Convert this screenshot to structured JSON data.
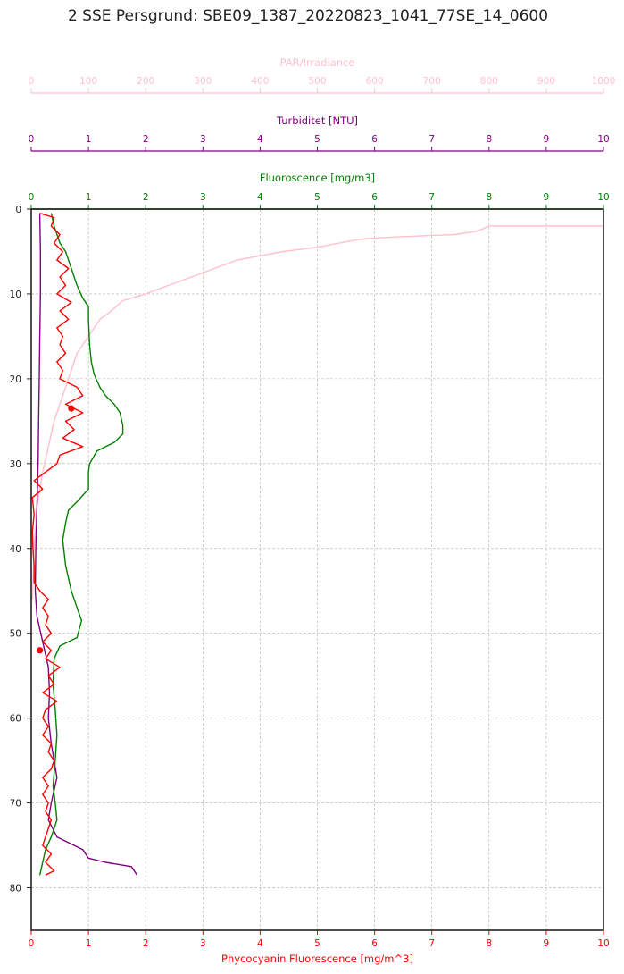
{
  "page": {
    "title": "2 SSE Persgrund: SBE09_1387_20220823_1041_77SE_14_0600"
  },
  "colors": {
    "par": "#ffc0cb",
    "turbidity": "#800080",
    "fluorescence": "#008000",
    "phycocyanin": "#ff0000",
    "grid": "#b0b0b0",
    "frame": "#222222"
  },
  "chart_data": {
    "type": "line",
    "title": "2 SSE Persgrund: SBE09_1387_20220823_1041_77SE_14_0600",
    "grid": true,
    "y_axis": {
      "label": "",
      "range": [
        85,
        0
      ],
      "inverted": true,
      "ticks": [
        0,
        10,
        20,
        30,
        40,
        50,
        60,
        70,
        80
      ],
      "tick_labels": [
        "0",
        "10",
        "20",
        "30",
        "40",
        "50",
        "60",
        "70",
        "80"
      ]
    },
    "x_axes": [
      {
        "key": "par",
        "label": "PAR/Irradiance",
        "range": [
          0,
          1000
        ],
        "ticks": [
          0,
          100,
          200,
          300,
          400,
          500,
          600,
          700,
          800,
          900,
          1000
        ],
        "tick_labels": [
          "0",
          "100",
          "200",
          "300",
          "400",
          "500",
          "600",
          "700",
          "800",
          "900",
          "1000"
        ],
        "color": "#ffc0cb"
      },
      {
        "key": "turbidity",
        "label": "Turbiditet [NTU]",
        "range": [
          0,
          10
        ],
        "ticks": [
          0,
          1,
          2,
          3,
          4,
          5,
          6,
          7,
          8,
          9,
          10
        ],
        "tick_labels": [
          "0",
          "1",
          "2",
          "3",
          "4",
          "5",
          "6",
          "7",
          "8",
          "9",
          "10"
        ],
        "color": "#800080"
      },
      {
        "key": "fluorescence",
        "label": "Fluoroscence [mg/m3]",
        "range": [
          0,
          10
        ],
        "ticks": [
          0,
          1,
          2,
          3,
          4,
          5,
          6,
          7,
          8,
          9,
          10
        ],
        "tick_labels": [
          "0",
          "1",
          "2",
          "3",
          "4",
          "5",
          "6",
          "7",
          "8",
          "9",
          "10"
        ],
        "color": "#008000"
      },
      {
        "key": "phycocyanin",
        "label": "Phycocyanin Fluorescence [mg/m^3]",
        "range": [
          0,
          10
        ],
        "ticks": [
          0,
          1,
          2,
          3,
          4,
          5,
          6,
          7,
          8,
          9,
          10
        ],
        "tick_labels": [
          "0",
          "1",
          "2",
          "3",
          "4",
          "5",
          "6",
          "7",
          "8",
          "9",
          "10"
        ],
        "color": "#ff0000"
      }
    ],
    "series": [
      {
        "key": "par",
        "axis": "par",
        "color": "#ffc0cb",
        "points": [
          [
            1000,
            2
          ],
          [
            800,
            2
          ],
          [
            780,
            2.6
          ],
          [
            740,
            3
          ],
          [
            700,
            3.1
          ],
          [
            600,
            3.4
          ],
          [
            570,
            3.6
          ],
          [
            500,
            4.5
          ],
          [
            440,
            5
          ],
          [
            400,
            5.5
          ],
          [
            360,
            6
          ],
          [
            320,
            7
          ],
          [
            280,
            8
          ],
          [
            240,
            9
          ],
          [
            200,
            10
          ],
          [
            160,
            10.8
          ],
          [
            140,
            12
          ],
          [
            120,
            13
          ],
          [
            100,
            15
          ],
          [
            90,
            16
          ],
          [
            80,
            17
          ],
          [
            70,
            19
          ],
          [
            60,
            21
          ],
          [
            50,
            23
          ],
          [
            40,
            25
          ],
          [
            30,
            28
          ],
          [
            20,
            31
          ],
          [
            10,
            35
          ],
          [
            5,
            40
          ],
          [
            2,
            46
          ]
        ]
      },
      {
        "key": "turbidity",
        "axis": "turbidity",
        "color": "#800080",
        "points": [
          [
            0.15,
            0.5
          ],
          [
            0.16,
            5
          ],
          [
            0.16,
            10
          ],
          [
            0.15,
            15
          ],
          [
            0.14,
            20
          ],
          [
            0.13,
            25
          ],
          [
            0.12,
            30
          ],
          [
            0.1,
            35
          ],
          [
            0.08,
            40
          ],
          [
            0.07,
            45
          ],
          [
            0.1,
            48
          ],
          [
            0.2,
            51
          ],
          [
            0.3,
            54
          ],
          [
            0.32,
            57
          ],
          [
            0.3,
            60
          ],
          [
            0.35,
            63
          ],
          [
            0.4,
            65
          ],
          [
            0.45,
            67
          ],
          [
            0.35,
            70
          ],
          [
            0.3,
            72
          ],
          [
            0.45,
            74
          ],
          [
            0.9,
            75.5
          ],
          [
            1.0,
            76.5
          ],
          [
            1.3,
            77
          ],
          [
            1.75,
            77.5
          ],
          [
            1.85,
            78.5
          ]
        ]
      },
      {
        "key": "fluorescence",
        "axis": "fluorescence",
        "color": "#008000",
        "points": [
          [
            0.35,
            0.5
          ],
          [
            0.4,
            2
          ],
          [
            0.5,
            4
          ],
          [
            0.6,
            5
          ],
          [
            0.7,
            7
          ],
          [
            0.8,
            9
          ],
          [
            0.9,
            10.5
          ],
          [
            1.0,
            11.5
          ],
          [
            1.0,
            13
          ],
          [
            1.02,
            16
          ],
          [
            1.05,
            18
          ],
          [
            1.1,
            19.5
          ],
          [
            1.2,
            21
          ],
          [
            1.3,
            22
          ],
          [
            1.45,
            23
          ],
          [
            1.55,
            24
          ],
          [
            1.6,
            25.5
          ],
          [
            1.6,
            26.5
          ],
          [
            1.45,
            27.5
          ],
          [
            1.15,
            28.5
          ],
          [
            1.02,
            30
          ],
          [
            1.0,
            31
          ],
          [
            1.0,
            33
          ],
          [
            0.8,
            34.5
          ],
          [
            0.65,
            35.5
          ],
          [
            0.6,
            37
          ],
          [
            0.55,
            39
          ],
          [
            0.6,
            42
          ],
          [
            0.7,
            45
          ],
          [
            0.8,
            47
          ],
          [
            0.88,
            48.5
          ],
          [
            0.8,
            50.5
          ],
          [
            0.5,
            51.5
          ],
          [
            0.4,
            53
          ],
          [
            0.38,
            56
          ],
          [
            0.42,
            59
          ],
          [
            0.45,
            62
          ],
          [
            0.42,
            65
          ],
          [
            0.38,
            68
          ],
          [
            0.42,
            70
          ],
          [
            0.45,
            72
          ],
          [
            0.35,
            74
          ],
          [
            0.25,
            75.5
          ],
          [
            0.15,
            78.5
          ]
        ]
      },
      {
        "key": "phycocyanin",
        "axis": "phycocyanin",
        "color": "#ff0000",
        "points": [
          [
            0.15,
            0.5
          ],
          [
            0.4,
            1
          ],
          [
            0.35,
            2
          ],
          [
            0.5,
            3
          ],
          [
            0.4,
            4
          ],
          [
            0.55,
            5
          ],
          [
            0.45,
            6
          ],
          [
            0.65,
            7
          ],
          [
            0.5,
            8
          ],
          [
            0.6,
            9
          ],
          [
            0.45,
            10
          ],
          [
            0.7,
            11
          ],
          [
            0.5,
            12
          ],
          [
            0.65,
            13
          ],
          [
            0.45,
            14
          ],
          [
            0.55,
            15
          ],
          [
            0.5,
            16
          ],
          [
            0.6,
            17
          ],
          [
            0.45,
            18
          ],
          [
            0.55,
            19
          ],
          [
            0.5,
            20
          ],
          [
            0.8,
            21
          ],
          [
            0.9,
            22
          ],
          [
            0.6,
            23
          ],
          [
            0.9,
            24
          ],
          [
            0.6,
            25
          ],
          [
            0.75,
            26
          ],
          [
            0.55,
            27
          ],
          [
            0.9,
            28
          ],
          [
            0.5,
            29
          ],
          [
            0.45,
            30
          ],
          [
            0.05,
            32
          ],
          [
            0.2,
            33
          ],
          [
            0.02,
            34
          ],
          [
            0.05,
            36
          ],
          [
            0.02,
            38
          ],
          [
            0.03,
            40
          ],
          [
            0.05,
            42
          ],
          [
            0.05,
            44
          ],
          [
            0.15,
            45
          ],
          [
            0.3,
            46
          ],
          [
            0.2,
            47
          ],
          [
            0.3,
            48
          ],
          [
            0.25,
            49
          ],
          [
            0.35,
            50
          ],
          [
            0.2,
            51
          ],
          [
            0.35,
            52
          ],
          [
            0.25,
            53
          ],
          [
            0.5,
            54
          ],
          [
            0.3,
            55
          ],
          [
            0.4,
            56
          ],
          [
            0.2,
            57
          ],
          [
            0.45,
            58
          ],
          [
            0.25,
            59
          ],
          [
            0.2,
            60
          ],
          [
            0.3,
            61
          ],
          [
            0.2,
            62
          ],
          [
            0.35,
            63
          ],
          [
            0.3,
            64
          ],
          [
            0.4,
            65
          ],
          [
            0.35,
            66
          ],
          [
            0.2,
            67
          ],
          [
            0.3,
            68
          ],
          [
            0.2,
            69
          ],
          [
            0.3,
            70
          ],
          [
            0.25,
            71
          ],
          [
            0.35,
            72
          ],
          [
            0.3,
            73
          ],
          [
            0.25,
            74
          ],
          [
            0.2,
            75
          ],
          [
            0.35,
            76
          ],
          [
            0.25,
            77
          ],
          [
            0.4,
            78
          ],
          [
            0.25,
            78.5
          ]
        ]
      }
    ],
    "markers": [
      {
        "series": "phycocyanin",
        "x": 0.7,
        "y": 23.5,
        "color": "#ff0000"
      },
      {
        "series": "phycocyanin",
        "x": 0.15,
        "y": 52,
        "color": "#ff0000"
      }
    ]
  }
}
